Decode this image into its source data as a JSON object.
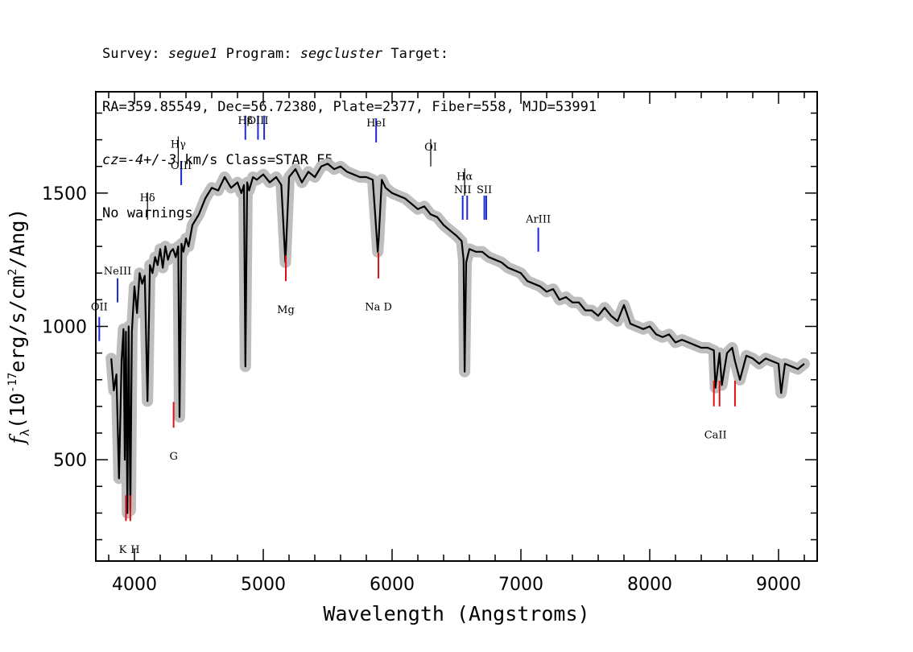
{
  "header": {
    "survey_label": "Survey:",
    "survey": "segue1",
    "program_label": "Program:",
    "program": "segcluster",
    "target_label": "Target:",
    "line2": "RA=359.85549, Dec=56.72380, Plate=2377, Fiber=558, MJD=53991",
    "cz": "cz=-4+/-3",
    "cz_rest": "km/s Class=STAR F5",
    "line4": "No warnings."
  },
  "chart_data": {
    "type": "line",
    "title": "",
    "xlabel": "Wavelength (Angstroms)",
    "ylabel": "f_λ (10⁻¹⁷ erg/s/cm²/Ang)",
    "ylabel_main": "(10",
    "ylabel_exp": "-17",
    "ylabel_rest": "erg/s/cm",
    "ylabel_exp2": "2",
    "ylabel_tail": "/Ang)",
    "xlim": [
      3700,
      9300
    ],
    "ylim": [
      120,
      1880
    ],
    "xticks": [
      4000,
      5000,
      6000,
      7000,
      8000,
      9000
    ],
    "xtick_labels": [
      "4000",
      "5000",
      "6000",
      "7000",
      "8000",
      "9000"
    ],
    "yticks": [
      500,
      1000,
      1500
    ],
    "ytick_labels": [
      "500",
      "1000",
      "1500"
    ],
    "series": [
      {
        "name": "flux",
        "color": "#000000",
        "x": [
          3820,
          3840,
          3860,
          3880,
          3900,
          3915,
          3925,
          3934,
          3945,
          3955,
          3968,
          3980,
          4000,
          4020,
          4040,
          4060,
          4080,
          4101,
          4120,
          4140,
          4160,
          4180,
          4200,
          4220,
          4240,
          4260,
          4280,
          4300,
          4320,
          4340,
          4350,
          4365,
          4380,
          4400,
          4420,
          4450,
          4500,
          4550,
          4600,
          4650,
          4700,
          4750,
          4800,
          4830,
          4850,
          4861,
          4875,
          4890,
          4920,
          4950,
          5000,
          5050,
          5100,
          5140,
          5172,
          5200,
          5250,
          5300,
          5350,
          5400,
          5450,
          5500,
          5550,
          5600,
          5650,
          5700,
          5750,
          5800,
          5850,
          5889,
          5896,
          5920,
          5950,
          6000,
          6050,
          6100,
          6150,
          6200,
          6250,
          6300,
          6350,
          6400,
          6450,
          6500,
          6540,
          6555,
          6563,
          6575,
          6600,
          6650,
          6700,
          6750,
          6800,
          6850,
          6900,
          6950,
          7000,
          7050,
          7100,
          7150,
          7200,
          7250,
          7300,
          7350,
          7400,
          7450,
          7500,
          7550,
          7600,
          7650,
          7700,
          7750,
          7800,
          7850,
          7900,
          7950,
          8000,
          8050,
          8100,
          8150,
          8200,
          8250,
          8300,
          8350,
          8400,
          8450,
          8498,
          8510,
          8542,
          8560,
          8600,
          8640,
          8662,
          8700,
          8750,
          8800,
          8850,
          8900,
          8950,
          9000,
          9020,
          9050,
          9100,
          9150,
          9200
        ],
        "values": [
          880,
          760,
          820,
          430,
          870,
          990,
          500,
          980,
          300,
          1000,
          310,
          980,
          1150,
          1050,
          1200,
          1160,
          1190,
          720,
          1230,
          1200,
          1260,
          1230,
          1290,
          1220,
          1300,
          1250,
          1280,
          1290,
          1260,
          1300,
          660,
          1310,
          1280,
          1330,
          1300,
          1380,
          1420,
          1480,
          1520,
          1510,
          1560,
          1520,
          1540,
          1500,
          1530,
          850,
          1540,
          1510,
          1560,
          1550,
          1570,
          1540,
          1560,
          1530,
          1240,
          1560,
          1590,
          1540,
          1580,
          1560,
          1600,
          1610,
          1590,
          1600,
          1580,
          1570,
          1560,
          1560,
          1550,
          1280,
          1330,
          1550,
          1520,
          1500,
          1490,
          1480,
          1460,
          1440,
          1450,
          1420,
          1410,
          1380,
          1360,
          1340,
          1320,
          1250,
          830,
          1240,
          1290,
          1280,
          1280,
          1260,
          1250,
          1240,
          1220,
          1210,
          1200,
          1170,
          1160,
          1150,
          1130,
          1140,
          1100,
          1110,
          1090,
          1090,
          1060,
          1060,
          1040,
          1070,
          1040,
          1020,
          1080,
          1010,
          1000,
          990,
          1000,
          970,
          960,
          970,
          940,
          950,
          940,
          930,
          920,
          920,
          910,
          770,
          900,
          780,
          900,
          920,
          870,
          800,
          890,
          880,
          860,
          880,
          870,
          860,
          750,
          860,
          850,
          840,
          860
        ]
      },
      {
        "name": "error band",
        "color": "#bbbbbb",
        "width": 30
      }
    ],
    "emission_lines": [
      {
        "name": "OII",
        "wave": 3727,
        "y": 945,
        "label_y": 1060
      },
      {
        "name": "NeIII",
        "wave": 3869,
        "y": 1090,
        "label_y": 1195
      },
      {
        "name": "Hδ",
        "wave": 4101,
        "y": 1400,
        "label_y": 1470
      },
      {
        "name": "Hγ",
        "wave": 4340,
        "y": 1610,
        "label_y": 1670
      },
      {
        "name": "OIII",
        "wave": 4363,
        "y": 1530,
        "label_y": 1590
      },
      {
        "name": "Hβ",
        "wave": 4861,
        "y": 1700,
        "label_y": 1760
      },
      {
        "name": "OIII",
        "wave": 4959,
        "y": 1700,
        "label_y": 1760
      },
      {
        "name": "OIII",
        "wave": 5007,
        "y": 1700,
        "label_y": null
      },
      {
        "name": "HeI",
        "wave": 5876,
        "y": 1690,
        "label_y": 1750
      },
      {
        "name": "OI",
        "wave": 6300,
        "y": 1600,
        "label_y": 1660
      },
      {
        "name": "NII",
        "wave": 6548,
        "y": 1400,
        "label_y": 1500
      },
      {
        "name": "Hα",
        "wave": 6563,
        "y": 1490,
        "label_y": 1550
      },
      {
        "name": "NII",
        "wave": 6583,
        "y": 1400,
        "label_y": null
      },
      {
        "name": "SII",
        "wave": 6716,
        "y": 1400,
        "label_y": 1500
      },
      {
        "name": "SII",
        "wave": 6731,
        "y": 1400,
        "label_y": null
      },
      {
        "name": "ArIII",
        "wave": 7135,
        "y": 1280,
        "label_y": 1390
      }
    ],
    "absorption_lines": [
      {
        "name": "K",
        "wave": 3934,
        "y": 270,
        "label_y": 150
      },
      {
        "name": "H",
        "wave": 3968,
        "y": 270,
        "label_y": 150
      },
      {
        "name": "G",
        "wave": 4304,
        "y": 620,
        "label_y": 500
      },
      {
        "name": "Mg",
        "wave": 5175,
        "y": 1170,
        "label_y": 1050
      },
      {
        "name": "Na D",
        "wave": 5894,
        "y": 1180,
        "label_y": 1060
      },
      {
        "name": "CaII",
        "wave": 8498,
        "y": 700,
        "label_y": 580
      },
      {
        "name": "CaII",
        "wave": 8542,
        "y": 700,
        "label_y": null
      },
      {
        "name": "CaII",
        "wave": 8662,
        "y": 700,
        "label_y": null
      }
    ]
  }
}
